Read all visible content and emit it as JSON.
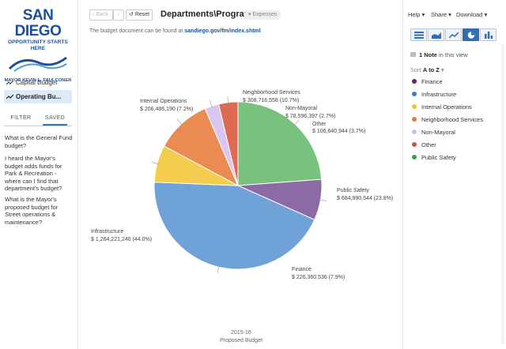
{
  "sidebar": {
    "logo": {
      "line1": "SAN DIEGO",
      "line2": "OPPORTUNITY STARTS HERE",
      "line3": "MAYOR KEVIN L. FAULCONER"
    },
    "items": [
      {
        "label": "Capital Budget",
        "icon": "line-chart-icon"
      },
      {
        "label": "Operating Bu...",
        "icon": "line-chart-icon"
      }
    ],
    "tabs": [
      "FILTER",
      "SAVED"
    ],
    "saved_questions": [
      "What is the General Fund budget?",
      "I heard the Mayor's budget adds funds for Park & Recreation - where can I find that department's budget?",
      "What is the Mayor's proposed budget for Street operations & maintenance?"
    ]
  },
  "toolbar": {
    "back_label": "Back",
    "reset_label": "Reset",
    "title": "Departments\\Programs",
    "badge": "Expenses"
  },
  "doc": {
    "text": "The budget document can be found at",
    "link": "sandiego.gov/fm/index.shtml"
  },
  "footer": {
    "year": "2015-16",
    "budget": "Proposed Budget"
  },
  "header_menus": [
    "Help",
    "Share",
    "Download"
  ],
  "notes": {
    "count_label": "1 Note",
    "suffix": "in this view"
  },
  "sort": {
    "prefix": "Sort",
    "value": "A to Z"
  },
  "legend": [
    {
      "label": "Finance",
      "color": "#5b2a6e"
    },
    {
      "label": "Infrastructure",
      "color": "#3e7fc4"
    },
    {
      "label": "Internal Operations",
      "color": "#f1c232"
    },
    {
      "label": "Neighborhood Services",
      "color": "#e07b39"
    },
    {
      "label": "Non-Mayoral",
      "color": "#d3b8e8"
    },
    {
      "label": "Other",
      "color": "#c7553f"
    },
    {
      "label": "Public Safety",
      "color": "#3a9b4a"
    }
  ],
  "chart_data": {
    "type": "pie",
    "slices": [
      {
        "name": "Public Safety",
        "value": 684990544,
        "percent": 23.8,
        "amount": "$ 684,990,544",
        "pct": "(23.8%)",
        "color": "#79c27e"
      },
      {
        "name": "Finance",
        "value": 226360536,
        "percent": 7.9,
        "amount": "$ 226,360,536",
        "pct": "(7.9%)",
        "color": "#8c6aa6"
      },
      {
        "name": "Infrastructure",
        "value": 1264221246,
        "percent": 44.0,
        "amount": "$ 1,264,221,246",
        "pct": "(44.0%)",
        "color": "#6fa3d8"
      },
      {
        "name": "Internal Operations",
        "value": 206486190,
        "percent": 7.2,
        "amount": "$ 206,486,190",
        "pct": "(7.2%)",
        "color": "#f4cd4f"
      },
      {
        "name": "Neighborhood Services",
        "value": 308716558,
        "percent": 10.7,
        "amount": "$ 308,716,558",
        "pct": "(10.7%)",
        "color": "#e98b53"
      },
      {
        "name": "Non-Mayoral",
        "value": 78596397,
        "percent": 2.7,
        "amount": "$ 78,596,397",
        "pct": "(2.7%)",
        "color": "#d9c7f0"
      },
      {
        "name": "Other",
        "value": 106640944,
        "percent": 3.7,
        "amount": "$ 106,640,944",
        "pct": "(3.7%)",
        "color": "#dd6b54"
      }
    ]
  }
}
